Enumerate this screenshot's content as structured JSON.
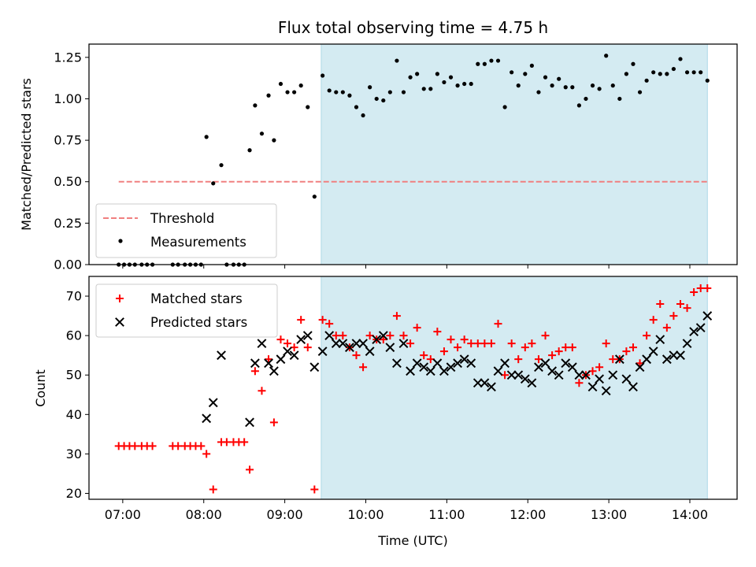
{
  "chart_data": [
    {
      "type": "scatter",
      "title": "Flux total observing time = 4.75 h",
      "ylabel": "Matched/Predicted stars",
      "xlabel": "",
      "ylim": [
        0,
        1.33
      ],
      "yticks": [
        0,
        0.25,
        0.5,
        0.75,
        1.0,
        1.25
      ],
      "ytick_labels": [
        "0.00",
        "0.25",
        "0.50",
        "0.75",
        "1.00",
        "1.25"
      ],
      "xlim": [
        "06:35",
        "14:35"
      ],
      "shaded_interval": {
        "start": "09:27",
        "end": "14:13",
        "color": "#d4ebf2"
      },
      "threshold": {
        "name": "Threshold",
        "value": 0.5,
        "start": "06:57",
        "end": "14:13",
        "color": "#f08080",
        "style": "dashed"
      },
      "legend": {
        "placement": "lower-left",
        "entries": [
          "Threshold",
          "Measurements"
        ]
      },
      "series": [
        {
          "name": "Measurements",
          "color": "#000000",
          "marker": "dot",
          "points": [
            [
              "06:57",
              0
            ],
            [
              "07:01",
              0
            ],
            [
              "07:05",
              0
            ],
            [
              "07:09",
              0
            ],
            [
              "07:14",
              0
            ],
            [
              "07:18",
              0
            ],
            [
              "07:22",
              0
            ],
            [
              "07:37",
              0
            ],
            [
              "07:41",
              0
            ],
            [
              "07:46",
              0
            ],
            [
              "07:50",
              0
            ],
            [
              "07:54",
              0
            ],
            [
              "07:58",
              0
            ],
            [
              "08:02",
              0.77
            ],
            [
              "08:07",
              0.49
            ],
            [
              "08:13",
              0.6
            ],
            [
              "08:17",
              0
            ],
            [
              "08:22",
              0
            ],
            [
              "08:26",
              0
            ],
            [
              "08:30",
              0
            ],
            [
              "08:34",
              0.69
            ],
            [
              "08:38",
              0.96
            ],
            [
              "08:43",
              0.79
            ],
            [
              "08:48",
              1.02
            ],
            [
              "08:52",
              0.75
            ],
            [
              "08:57",
              1.09
            ],
            [
              "09:02",
              1.04
            ],
            [
              "09:07",
              1.04
            ],
            [
              "09:12",
              1.08
            ],
            [
              "09:17",
              0.95
            ],
            [
              "09:22",
              0.41
            ],
            [
              "09:28",
              1.14
            ],
            [
              "09:33",
              1.05
            ],
            [
              "09:38",
              1.04
            ],
            [
              "09:43",
              1.04
            ],
            [
              "09:48",
              1.02
            ],
            [
              "09:53",
              0.95
            ],
            [
              "09:58",
              0.9
            ],
            [
              "10:03",
              1.07
            ],
            [
              "10:08",
              1.0
            ],
            [
              "10:13",
              0.99
            ],
            [
              "10:18",
              1.04
            ],
            [
              "10:23",
              1.23
            ],
            [
              "10:28",
              1.04
            ],
            [
              "10:33",
              1.13
            ],
            [
              "10:38",
              1.15
            ],
            [
              "10:43",
              1.06
            ],
            [
              "10:48",
              1.06
            ],
            [
              "10:53",
              1.15
            ],
            [
              "10:58",
              1.1
            ],
            [
              "11:03",
              1.13
            ],
            [
              "11:08",
              1.08
            ],
            [
              "11:13",
              1.09
            ],
            [
              "11:18",
              1.09
            ],
            [
              "11:23",
              1.21
            ],
            [
              "11:28",
              1.21
            ],
            [
              "11:33",
              1.23
            ],
            [
              "11:38",
              1.23
            ],
            [
              "11:43",
              0.95
            ],
            [
              "11:48",
              1.16
            ],
            [
              "11:53",
              1.08
            ],
            [
              "11:58",
              1.15
            ],
            [
              "12:03",
              1.2
            ],
            [
              "12:08",
              1.04
            ],
            [
              "12:13",
              1.13
            ],
            [
              "12:18",
              1.08
            ],
            [
              "12:23",
              1.12
            ],
            [
              "12:28",
              1.07
            ],
            [
              "12:33",
              1.07
            ],
            [
              "12:38",
              0.96
            ],
            [
              "12:43",
              1.0
            ],
            [
              "12:48",
              1.08
            ],
            [
              "12:53",
              1.06
            ],
            [
              "12:58",
              1.26
            ],
            [
              "13:03",
              1.08
            ],
            [
              "13:08",
              1.0
            ],
            [
              "13:13",
              1.15
            ],
            [
              "13:18",
              1.21
            ],
            [
              "13:23",
              1.04
            ],
            [
              "13:28",
              1.11
            ],
            [
              "13:33",
              1.16
            ],
            [
              "13:38",
              1.15
            ],
            [
              "13:43",
              1.15
            ],
            [
              "13:48",
              1.18
            ],
            [
              "13:53",
              1.24
            ],
            [
              "13:58",
              1.16
            ],
            [
              "14:03",
              1.16
            ],
            [
              "14:08",
              1.16
            ],
            [
              "14:13",
              1.11
            ]
          ]
        }
      ]
    },
    {
      "type": "scatter",
      "title": "",
      "ylabel": "Count",
      "xlabel": "Time (UTC)",
      "ylim": [
        18.5,
        75
      ],
      "yticks": [
        20,
        30,
        40,
        50,
        60,
        70
      ],
      "ytick_labels": [
        "20",
        "30",
        "40",
        "50",
        "60",
        "70"
      ],
      "xlim": [
        "06:35",
        "14:35"
      ],
      "xticks": [
        "07:00",
        "08:00",
        "09:00",
        "10:00",
        "11:00",
        "12:00",
        "13:00",
        "14:00"
      ],
      "xtick_labels": [
        "07:00",
        "08:00",
        "09:00",
        "10:00",
        "11:00",
        "12:00",
        "13:00",
        "14:00"
      ],
      "shaded_interval": {
        "start": "09:27",
        "end": "14:13",
        "color": "#d4ebf2"
      },
      "legend": {
        "placement": "upper-left",
        "entries": [
          "Matched stars",
          "Predicted stars"
        ]
      },
      "series": [
        {
          "name": "Matched stars",
          "color": "#ff0000",
          "marker": "plus",
          "points": [
            [
              "06:57",
              32
            ],
            [
              "07:01",
              32
            ],
            [
              "07:05",
              32
            ],
            [
              "07:09",
              32
            ],
            [
              "07:14",
              32
            ],
            [
              "07:18",
              32
            ],
            [
              "07:22",
              32
            ],
            [
              "07:37",
              32
            ],
            [
              "07:41",
              32
            ],
            [
              "07:46",
              32
            ],
            [
              "07:50",
              32
            ],
            [
              "07:54",
              32
            ],
            [
              "07:58",
              32
            ],
            [
              "08:02",
              30
            ],
            [
              "08:07",
              21
            ],
            [
              "08:13",
              33
            ],
            [
              "08:17",
              33
            ],
            [
              "08:22",
              33
            ],
            [
              "08:26",
              33
            ],
            [
              "08:30",
              33
            ],
            [
              "08:34",
              26
            ],
            [
              "08:38",
              51
            ],
            [
              "08:43",
              46
            ],
            [
              "08:48",
              54
            ],
            [
              "08:52",
              38
            ],
            [
              "08:57",
              59
            ],
            [
              "09:02",
              58
            ],
            [
              "09:07",
              57
            ],
            [
              "09:12",
              64
            ],
            [
              "09:17",
              57
            ],
            [
              "09:22",
              21
            ],
            [
              "09:28",
              64
            ],
            [
              "09:33",
              63
            ],
            [
              "09:38",
              60
            ],
            [
              "09:43",
              60
            ],
            [
              "09:48",
              57
            ],
            [
              "09:53",
              55
            ],
            [
              "09:58",
              52
            ],
            [
              "10:03",
              60
            ],
            [
              "10:08",
              59
            ],
            [
              "10:13",
              59
            ],
            [
              "10:18",
              60
            ],
            [
              "10:23",
              65
            ],
            [
              "10:28",
              60
            ],
            [
              "10:33",
              58
            ],
            [
              "10:38",
              62
            ],
            [
              "10:43",
              55
            ],
            [
              "10:48",
              54
            ],
            [
              "10:53",
              61
            ],
            [
              "10:58",
              56
            ],
            [
              "11:03",
              59
            ],
            [
              "11:08",
              57
            ],
            [
              "11:13",
              59
            ],
            [
              "11:18",
              58
            ],
            [
              "11:23",
              58
            ],
            [
              "11:28",
              58
            ],
            [
              "11:33",
              58
            ],
            [
              "11:38",
              63
            ],
            [
              "11:43",
              50
            ],
            [
              "11:48",
              58
            ],
            [
              "11:53",
              54
            ],
            [
              "11:58",
              57
            ],
            [
              "12:03",
              58
            ],
            [
              "12:08",
              54
            ],
            [
              "12:13",
              60
            ],
            [
              "12:18",
              55
            ],
            [
              "12:23",
              56
            ],
            [
              "12:28",
              57
            ],
            [
              "12:33",
              57
            ],
            [
              "12:38",
              48
            ],
            [
              "12:43",
              50
            ],
            [
              "12:48",
              51
            ],
            [
              "12:53",
              52
            ],
            [
              "12:58",
              58
            ],
            [
              "13:03",
              54
            ],
            [
              "13:08",
              54
            ],
            [
              "13:13",
              56
            ],
            [
              "13:18",
              57
            ],
            [
              "13:23",
              53
            ],
            [
              "13:28",
              60
            ],
            [
              "13:33",
              64
            ],
            [
              "13:38",
              68
            ],
            [
              "13:43",
              62
            ],
            [
              "13:48",
              65
            ],
            [
              "13:53",
              68
            ],
            [
              "13:58",
              67
            ],
            [
              "14:03",
              71
            ],
            [
              "14:08",
              72
            ],
            [
              "14:13",
              72
            ]
          ]
        },
        {
          "name": "Predicted stars",
          "color": "#000000",
          "marker": "x",
          "points": [
            [
              "08:02",
              39
            ],
            [
              "08:07",
              43
            ],
            [
              "08:13",
              55
            ],
            [
              "08:34",
              38
            ],
            [
              "08:38",
              53
            ],
            [
              "08:43",
              58
            ],
            [
              "08:48",
              53
            ],
            [
              "08:52",
              51
            ],
            [
              "08:57",
              54
            ],
            [
              "09:02",
              56
            ],
            [
              "09:07",
              55
            ],
            [
              "09:12",
              59
            ],
            [
              "09:17",
              60
            ],
            [
              "09:22",
              52
            ],
            [
              "09:28",
              56
            ],
            [
              "09:33",
              60
            ],
            [
              "09:38",
              58
            ],
            [
              "09:43",
              58
            ],
            [
              "09:48",
              57
            ],
            [
              "09:53",
              58
            ],
            [
              "09:58",
              58
            ],
            [
              "10:03",
              56
            ],
            [
              "10:08",
              59
            ],
            [
              "10:13",
              60
            ],
            [
              "10:18",
              57
            ],
            [
              "10:23",
              53
            ],
            [
              "10:28",
              58
            ],
            [
              "10:33",
              51
            ],
            [
              "10:38",
              53
            ],
            [
              "10:43",
              52
            ],
            [
              "10:48",
              51
            ],
            [
              "10:53",
              53
            ],
            [
              "10:58",
              51
            ],
            [
              "11:03",
              52
            ],
            [
              "11:08",
              53
            ],
            [
              "11:13",
              54
            ],
            [
              "11:18",
              53
            ],
            [
              "11:23",
              48
            ],
            [
              "11:28",
              48
            ],
            [
              "11:33",
              47
            ],
            [
              "11:38",
              51
            ],
            [
              "11:43",
              53
            ],
            [
              "11:48",
              50
            ],
            [
              "11:53",
              50
            ],
            [
              "11:58",
              49
            ],
            [
              "12:03",
              48
            ],
            [
              "12:08",
              52
            ],
            [
              "12:13",
              53
            ],
            [
              "12:18",
              51
            ],
            [
              "12:23",
              50
            ],
            [
              "12:28",
              53
            ],
            [
              "12:33",
              52
            ],
            [
              "12:38",
              50
            ],
            [
              "12:43",
              50
            ],
            [
              "12:48",
              47
            ],
            [
              "12:53",
              49
            ],
            [
              "12:58",
              46
            ],
            [
              "13:03",
              50
            ],
            [
              "13:08",
              54
            ],
            [
              "13:13",
              49
            ],
            [
              "13:18",
              47
            ],
            [
              "13:23",
              52
            ],
            [
              "13:28",
              54
            ],
            [
              "13:33",
              56
            ],
            [
              "13:38",
              59
            ],
            [
              "13:43",
              54
            ],
            [
              "13:48",
              55
            ],
            [
              "13:53",
              55
            ],
            [
              "13:58",
              58
            ],
            [
              "14:03",
              61
            ],
            [
              "14:08",
              62
            ],
            [
              "14:13",
              65
            ]
          ]
        }
      ]
    }
  ]
}
